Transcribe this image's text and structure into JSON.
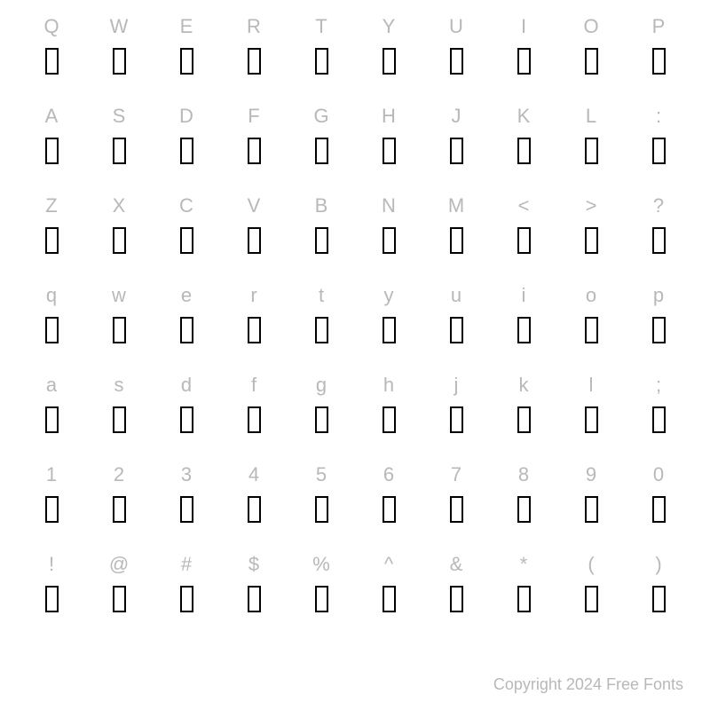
{
  "chart": {
    "type": "character-map",
    "columns": 10,
    "rows": 7,
    "background_color": "#ffffff",
    "label_color": "#b8b8b8",
    "label_fontsize": 22,
    "glyph_border_color": "#000000",
    "glyph_border_width": 2,
    "glyph_width": 15,
    "glyph_height": 30,
    "rows_data": [
      [
        "Q",
        "W",
        "E",
        "R",
        "T",
        "Y",
        "U",
        "I",
        "O",
        "P"
      ],
      [
        "A",
        "S",
        "D",
        "F",
        "G",
        "H",
        "J",
        "K",
        "L",
        ":"
      ],
      [
        "Z",
        "X",
        "C",
        "V",
        "B",
        "N",
        "M",
        "<",
        ">",
        "?"
      ],
      [
        "q",
        "w",
        "e",
        "r",
        "t",
        "y",
        "u",
        "i",
        "o",
        "p"
      ],
      [
        "a",
        "s",
        "d",
        "f",
        "g",
        "h",
        "j",
        "k",
        "l",
        ";"
      ],
      [
        "1",
        "2",
        "3",
        "4",
        "5",
        "6",
        "7",
        "8",
        "9",
        "0"
      ],
      [
        "!",
        "@",
        "#",
        "$",
        "%",
        "^",
        "&",
        "*",
        "(",
        ")"
      ]
    ]
  },
  "copyright": "Copyright 2024 Free Fonts"
}
